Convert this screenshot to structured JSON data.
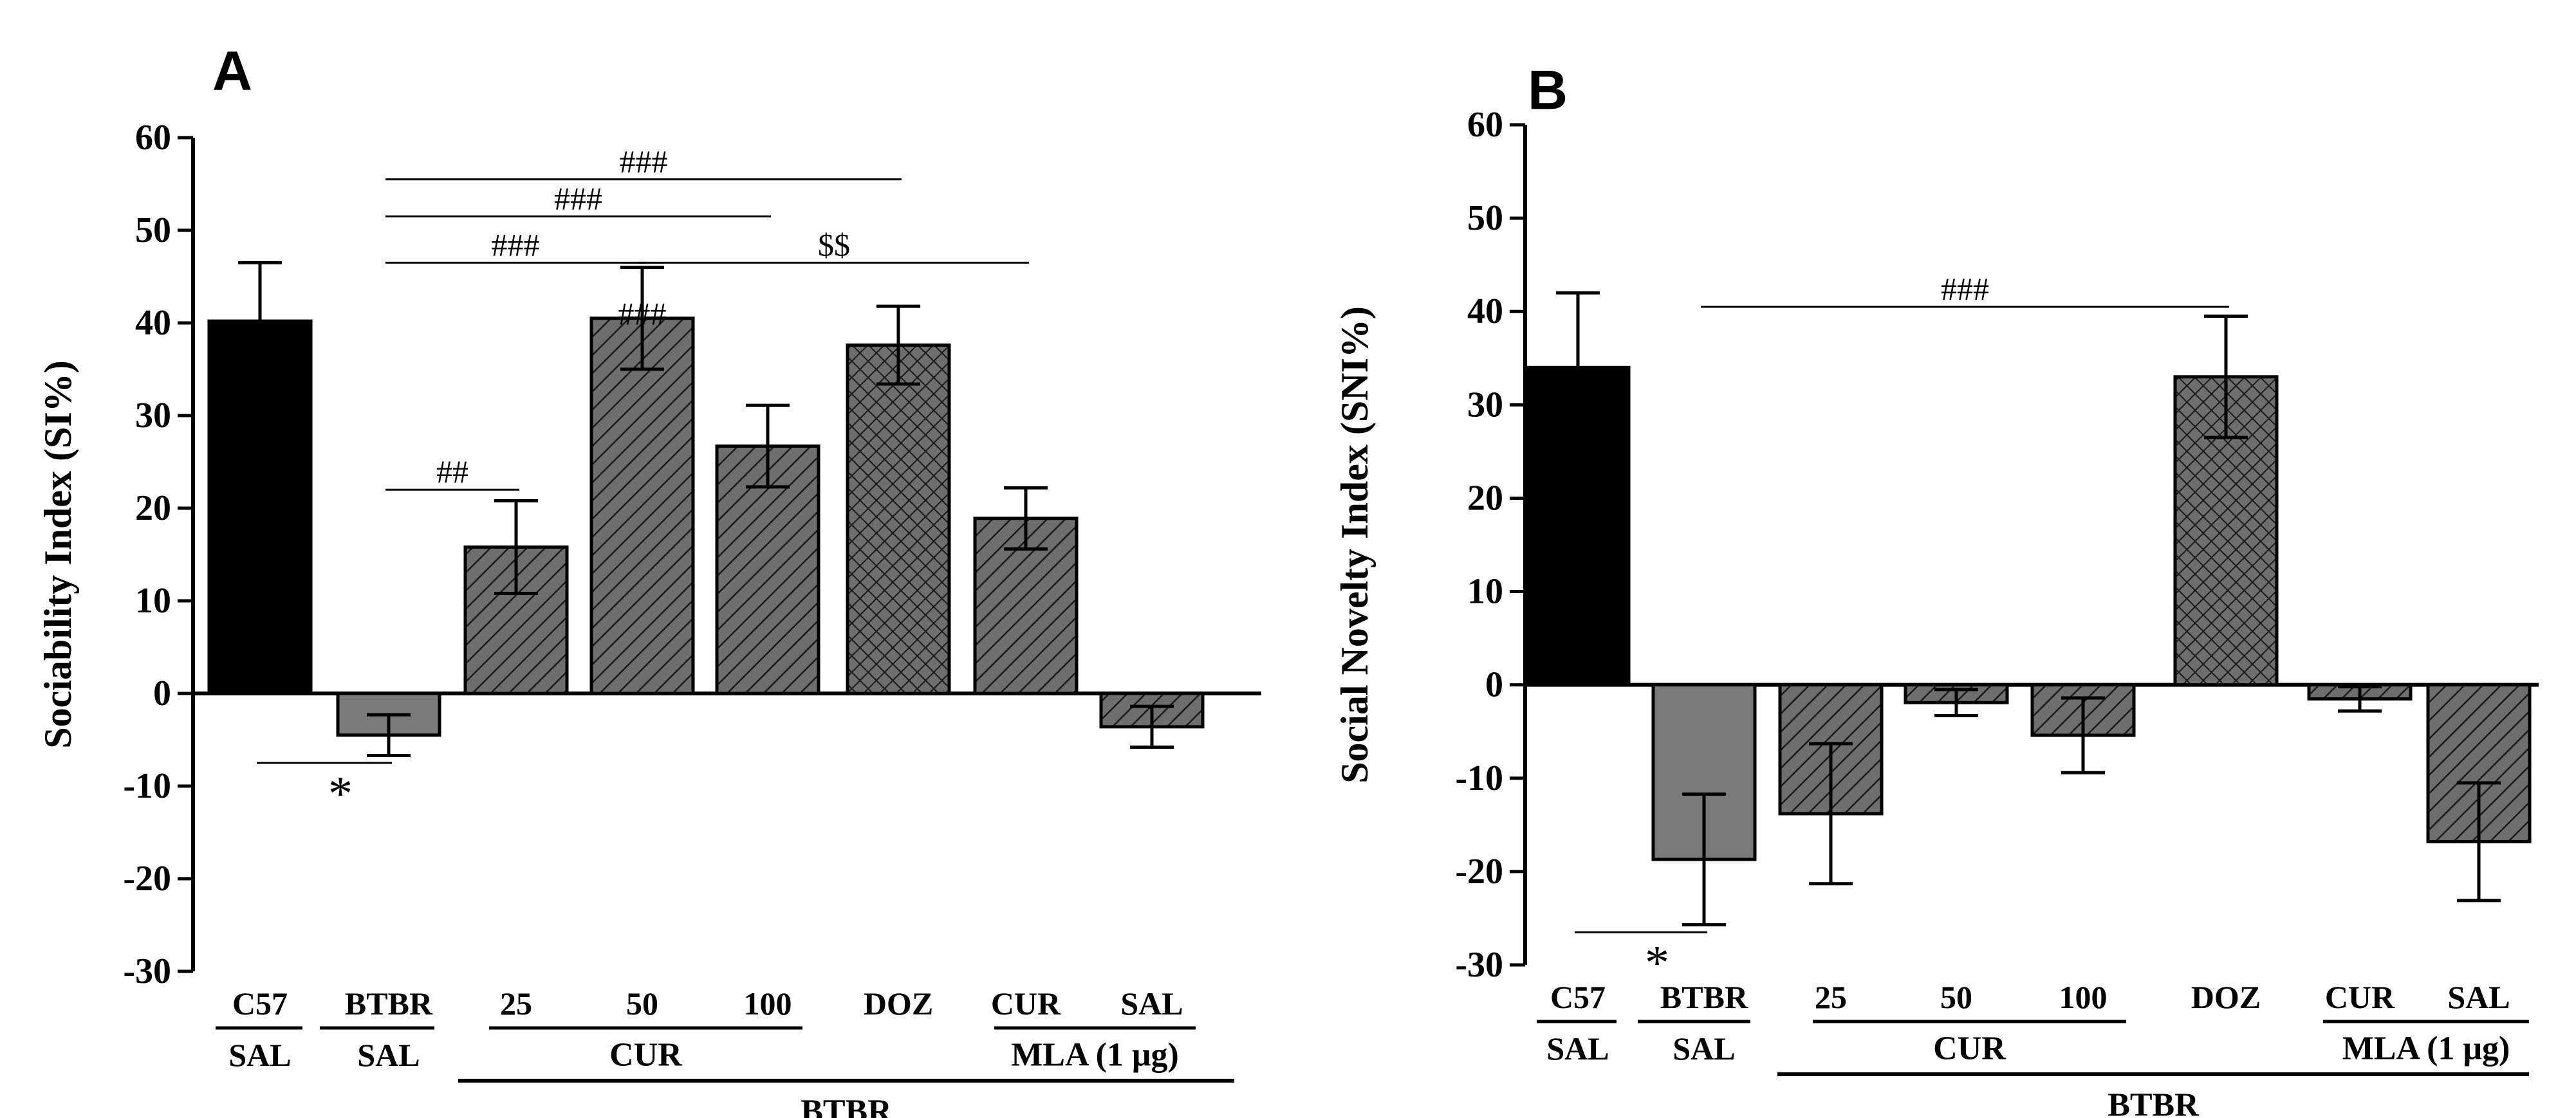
{
  "chart_data": [
    {
      "panel": "A",
      "type": "bar",
      "ylabel": "Sociability Index (SI%)",
      "ylim": [
        -30,
        60
      ],
      "yticks": [
        60,
        50,
        40,
        30,
        20,
        10,
        0,
        -10,
        -20,
        -30
      ],
      "bars": [
        {
          "top": "C57",
          "bottom": "SAL",
          "value": 40.2,
          "error": 6.3,
          "fill": "black"
        },
        {
          "top": "BTBR",
          "bottom": "SAL",
          "value": -4.5,
          "error": 2.2,
          "fill": "gray"
        },
        {
          "top": "25",
          "value": 15.8,
          "error": 5.0,
          "fill": "hatch"
        },
        {
          "top": "50",
          "value": 40.5,
          "error": 5.5,
          "fill": "hatch"
        },
        {
          "top": "100",
          "value": 26.7,
          "error": 4.4,
          "fill": "hatch"
        },
        {
          "top": "DOZ",
          "value": 37.6,
          "error": 4.2,
          "fill": "crosshatch"
        },
        {
          "top": "CUR",
          "value": 18.9,
          "error": 3.3,
          "fill": "hatch"
        },
        {
          "top": "SAL",
          "value": -3.6,
          "error": 2.2,
          "fill": "hatch"
        }
      ],
      "group_labels": {
        "cur": "CUR",
        "mla": "MLA (1 μg)",
        "btbr": "BTBR"
      },
      "annotations": [
        {
          "text": "###",
          "from": 1,
          "to": 5,
          "y": 55.5
        },
        {
          "text": "###",
          "from": 1,
          "to": 4,
          "y": 51.5
        },
        {
          "text": "###",
          "from": 1,
          "to": 3,
          "y": 46.5
        },
        {
          "text": "$$",
          "from": 3,
          "to": 6,
          "y": 46.5
        },
        {
          "text": "###",
          "at": 3,
          "y": 41.0
        },
        {
          "text": "##",
          "from": 1,
          "to": 2,
          "y": 22.0
        },
        {
          "text": "*",
          "from": 0,
          "to": 1,
          "y": -7.5
        }
      ]
    },
    {
      "panel": "B",
      "type": "bar",
      "ylabel": "Social Novelty Index (SNI%)",
      "ylim": [
        -30,
        60
      ],
      "yticks": [
        60,
        50,
        40,
        30,
        20,
        10,
        0,
        -10,
        -20,
        -30
      ],
      "bars": [
        {
          "top": "C57",
          "bottom": "SAL",
          "value": 34.0,
          "error": 8.0,
          "fill": "black"
        },
        {
          "top": "BTBR",
          "bottom": "SAL",
          "value": -18.7,
          "error": 7.0,
          "fill": "gray"
        },
        {
          "top": "25",
          "value": -13.8,
          "error": 7.5,
          "fill": "hatch"
        },
        {
          "top": "50",
          "value": -1.9,
          "error": 1.4,
          "fill": "hatch"
        },
        {
          "top": "100",
          "value": -5.4,
          "error": 4.0,
          "fill": "hatch"
        },
        {
          "top": "DOZ",
          "value": 33.0,
          "error": 6.5,
          "fill": "crosshatch"
        },
        {
          "top": "CUR",
          "value": -1.5,
          "error": 1.3,
          "fill": "hatch"
        },
        {
          "top": "SAL",
          "value": -16.8,
          "error": 6.3,
          "fill": "hatch"
        }
      ],
      "group_labels": {
        "cur": "CUR",
        "mla": "MLA (1 μg)",
        "btbr": "BTBR"
      },
      "annotations": [
        {
          "text": "###",
          "from": 1,
          "to": 5,
          "y": 40.5
        },
        {
          "text": "*",
          "from": 0,
          "to": 1,
          "y": -26.5
        }
      ]
    }
  ]
}
